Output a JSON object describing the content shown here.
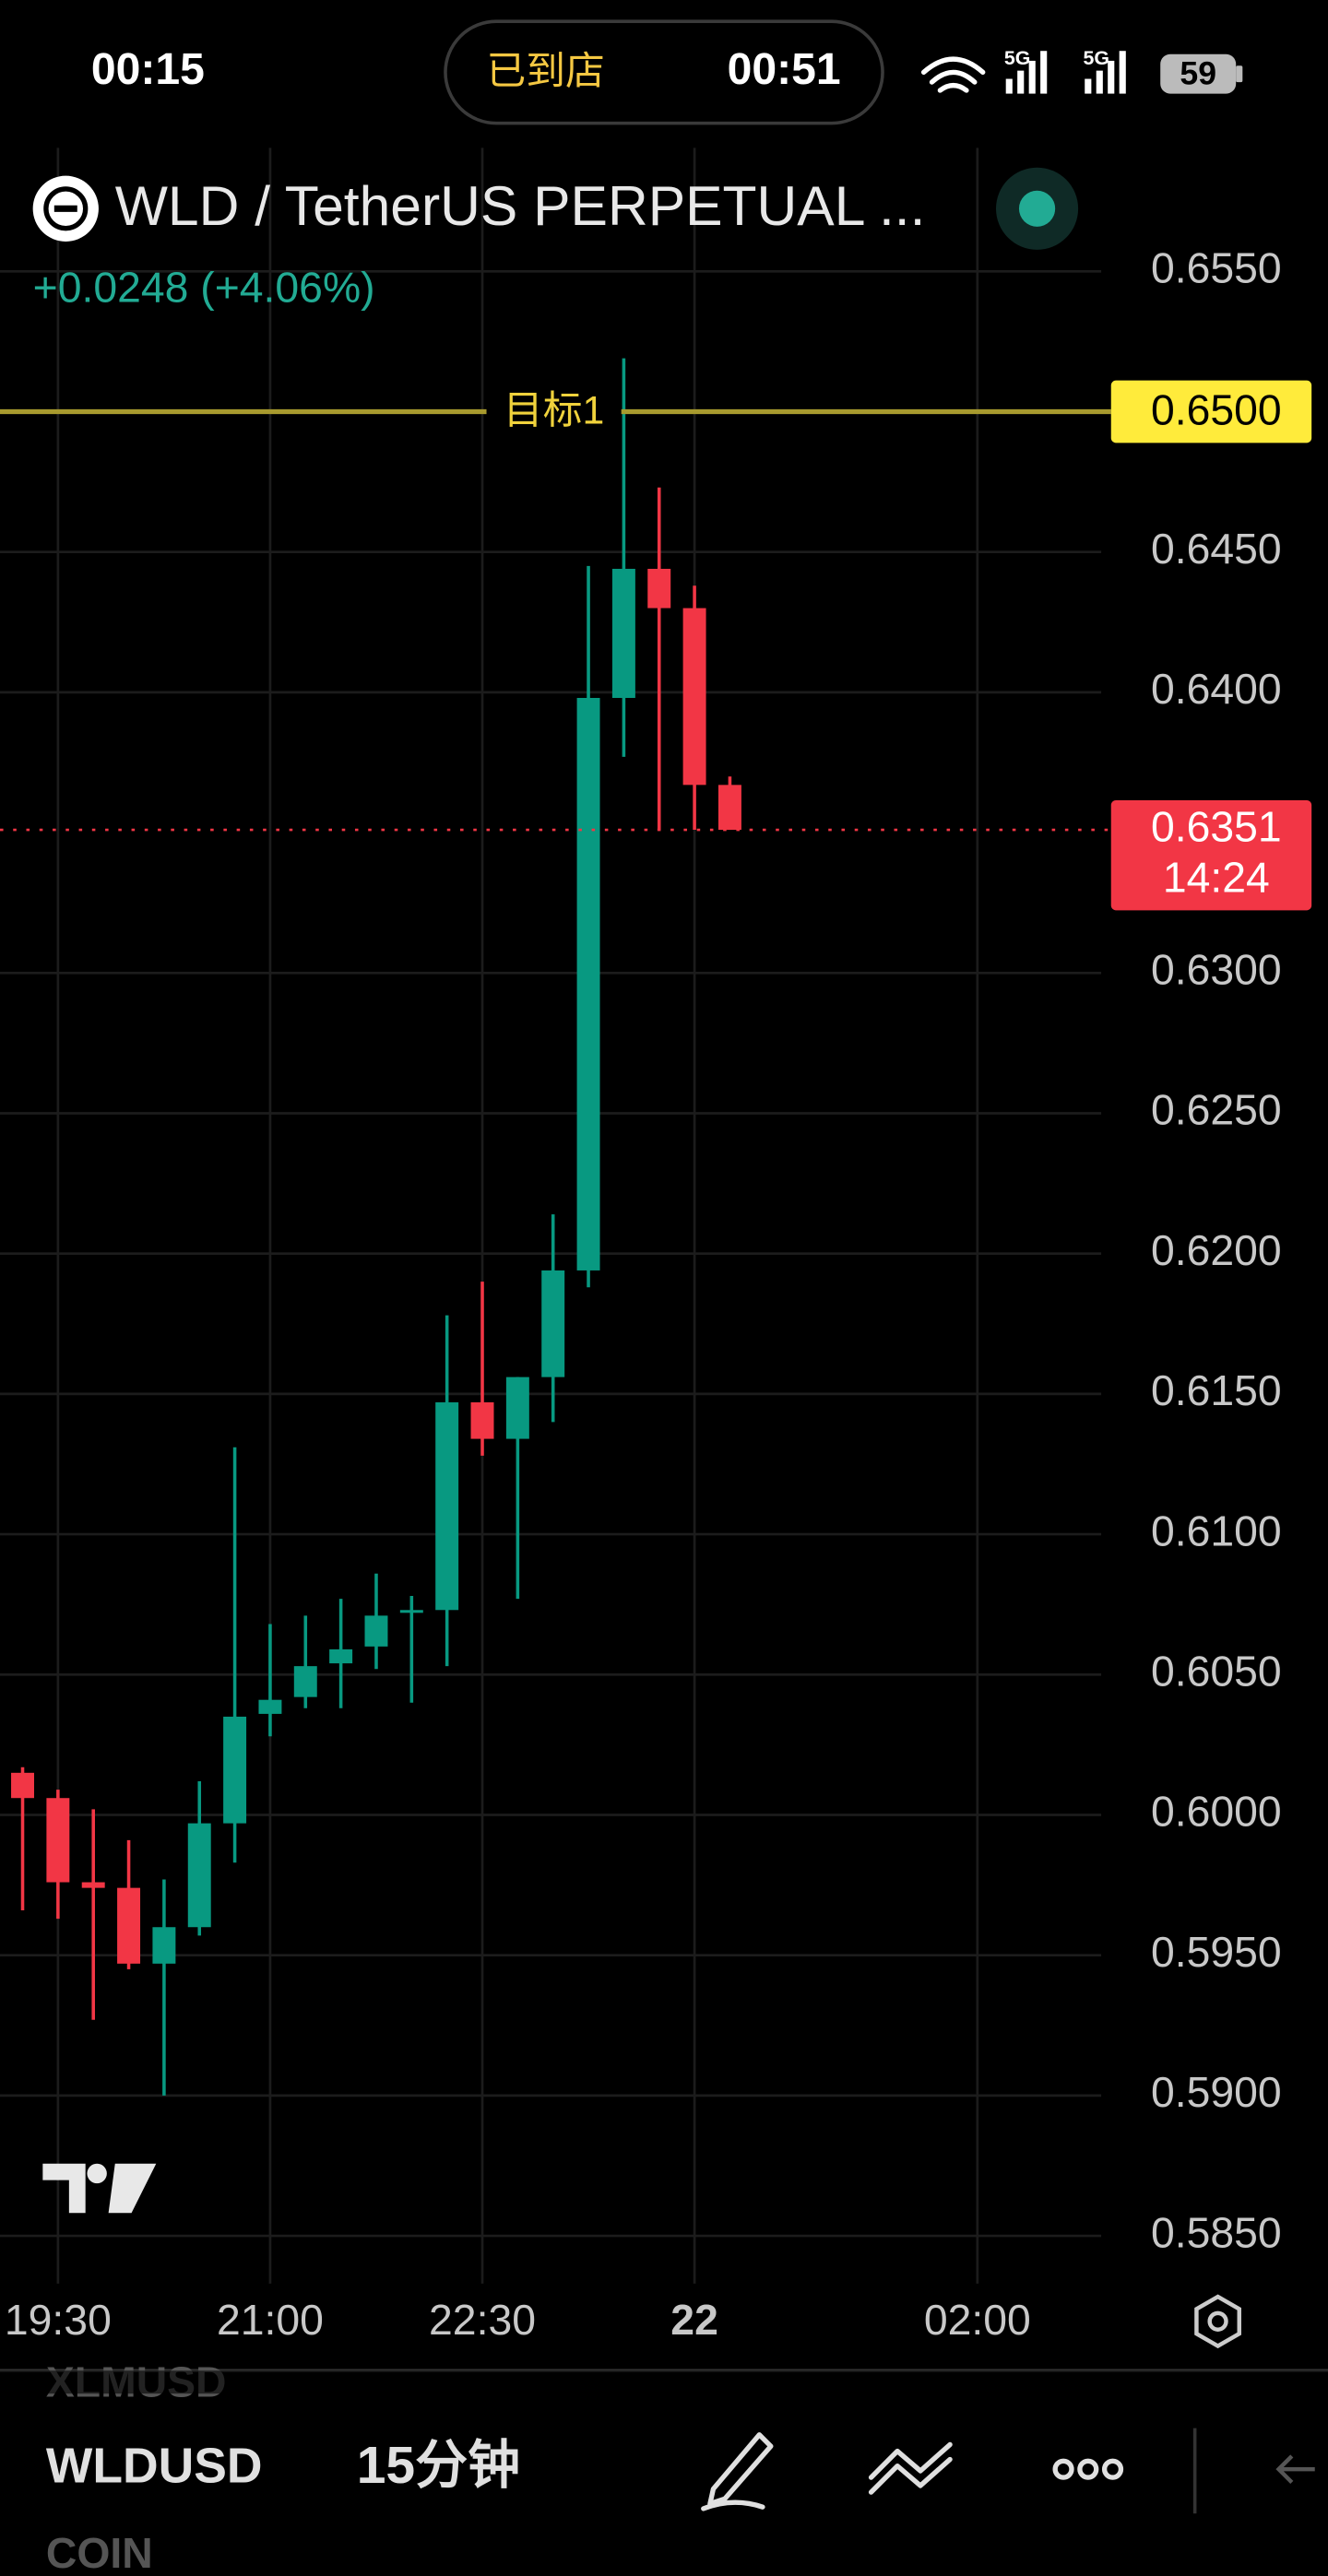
{
  "status_bar": {
    "time": "00:15",
    "pill_label": "已到店",
    "pill_time": "00:51",
    "network_1": "5G",
    "network_2": "5G",
    "battery": "59"
  },
  "chart_data": {
    "type": "candlestick",
    "title": "WLD / TetherUS PERPETUAL ...",
    "subtitle": "+0.0248 (+4.06%)",
    "categories": [
      null,
      "19:30",
      null,
      null,
      null,
      null,
      null,
      "21:00",
      null,
      null,
      null,
      null,
      null,
      "22:30",
      null,
      null,
      null,
      null,
      null,
      "22",
      null,
      null,
      null,
      null,
      null,
      null,
      null,
      "02:00",
      null,
      null,
      null
    ],
    "open": [
      0.6015,
      0.6006,
      0.5976,
      0.5974,
      0.5947,
      0.596,
      0.5997,
      0.6036,
      0.6042,
      0.6054,
      0.606,
      0.6072,
      0.6073,
      0.6147,
      0.6134,
      0.6156,
      0.6194,
      0.6398,
      0.6444,
      0.643,
      0.6367,
      null,
      null,
      null,
      null,
      null,
      null,
      null,
      null,
      null,
      null
    ],
    "high": [
      0.6017,
      0.6009,
      0.6002,
      0.5991,
      0.5977,
      0.6012,
      0.6131,
      0.6068,
      0.6071,
      0.6077,
      0.6086,
      0.6078,
      0.6178,
      0.619,
      0.6156,
      0.6214,
      0.6445,
      0.6519,
      0.6473,
      0.6438,
      0.637,
      null,
      null,
      null,
      null,
      null,
      null,
      null,
      null,
      null,
      null
    ],
    "low": [
      0.5966,
      0.5963,
      0.5927,
      0.5945,
      0.59,
      0.5957,
      0.5983,
      0.6028,
      0.6038,
      0.6038,
      0.6052,
      0.604,
      0.6053,
      0.6128,
      0.6077,
      0.614,
      0.6188,
      0.6377,
      0.6351,
      0.6351,
      0.6351,
      null,
      null,
      null,
      null,
      null,
      null,
      null,
      null,
      null,
      null
    ],
    "close": [
      0.6006,
      0.5976,
      0.5974,
      0.5947,
      0.596,
      0.5997,
      0.6035,
      0.6041,
      0.6053,
      0.6059,
      0.6071,
      0.6073,
      0.6147,
      0.6134,
      0.6156,
      0.6194,
      0.6398,
      0.6444,
      0.643,
      0.6367,
      0.6351,
      null,
      null,
      null,
      null,
      null,
      null,
      null,
      null,
      null,
      null
    ],
    "up_color": "#089981",
    "down_color": "#f23645",
    "ylim": [
      0.5833,
      0.6594
    ],
    "yticks": [
      {
        "value": 0.655,
        "label": "0.6550"
      },
      {
        "value": 0.645,
        "label": "0.6450"
      },
      {
        "value": 0.64,
        "label": "0.6400"
      },
      {
        "value": 0.63,
        "label": "0.6300"
      },
      {
        "value": 0.625,
        "label": "0.6250"
      },
      {
        "value": 0.62,
        "label": "0.6200"
      },
      {
        "value": 0.615,
        "label": "0.6150"
      },
      {
        "value": 0.61,
        "label": "0.6100"
      },
      {
        "value": 0.605,
        "label": "0.6050"
      },
      {
        "value": 0.6,
        "label": "0.6000"
      },
      {
        "value": 0.595,
        "label": "0.5950"
      },
      {
        "value": 0.59,
        "label": "0.5900"
      },
      {
        "value": 0.585,
        "label": "0.5850"
      }
    ],
    "grid": true,
    "target": {
      "value": 0.65,
      "label": "0.6500",
      "name": "目标1",
      "color": "#ffeb3b"
    },
    "last_price": {
      "value": 0.6351,
      "label": "0.6351",
      "countdown": "14:24"
    }
  },
  "toolbar": {
    "symbols": [
      "XLMUSD",
      "WLDUSD",
      "COIN"
    ],
    "interval": "15分钟"
  }
}
